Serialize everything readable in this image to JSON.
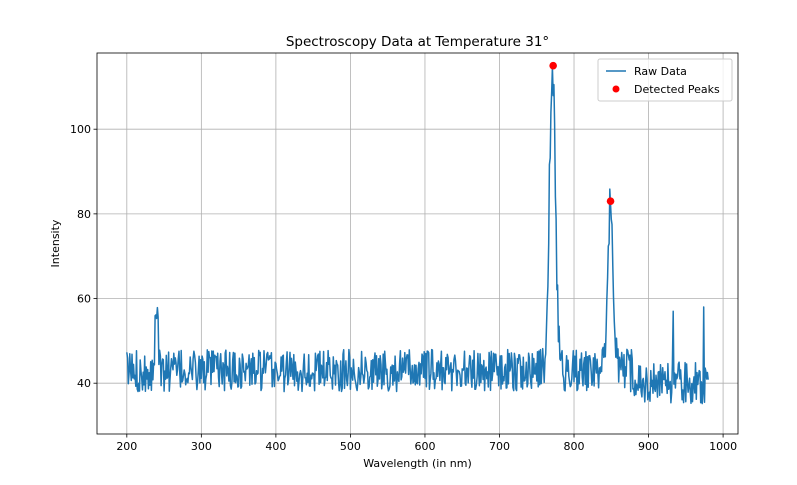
{
  "chart_data": {
    "type": "line",
    "title": "Spectroscopy Data at Temperature 31°",
    "xlabel": "Wavelength (in nm)",
    "ylabel": "Intensity",
    "xlim": [
      160,
      1020
    ],
    "ylim": [
      28,
      118
    ],
    "xticks": [
      200,
      300,
      400,
      500,
      600,
      700,
      800,
      900,
      1000
    ],
    "yticks": [
      40,
      60,
      80,
      100
    ],
    "grid": true,
    "legend_position": "top-right",
    "series": [
      {
        "name": "Raw Data",
        "color": "#1f77b4",
        "x_start": 200,
        "x_end": 980,
        "points": 780,
        "baseline_level": 43,
        "noise_amplitude": 5,
        "peaks_shape": [
          {
            "center": 771,
            "height": 115,
            "width": 4
          },
          {
            "center": 849,
            "height": 83,
            "width": 3.5
          }
        ]
      },
      {
        "name": "Detected Peaks",
        "type": "scatter",
        "color": "#ff0000",
        "x": [
          772,
          849
        ],
        "y": [
          115,
          83
        ]
      }
    ]
  }
}
